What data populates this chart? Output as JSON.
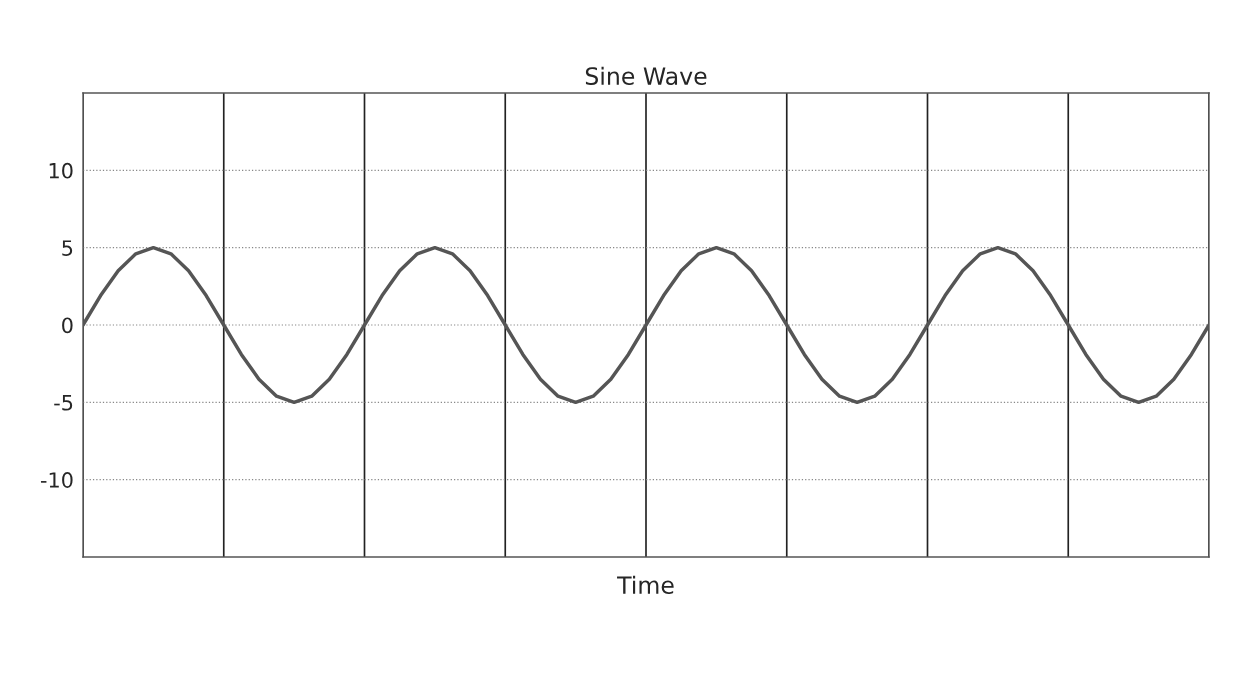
{
  "chart_data": {
    "type": "line",
    "title": "Sine Wave",
    "xlabel": "Time",
    "categories": [
      null,
      null,
      null,
      null,
      null,
      null,
      null,
      null,
      null,
      null,
      null,
      null,
      null,
      null,
      null,
      null,
      null,
      null,
      null,
      null,
      null,
      null,
      null,
      null,
      null,
      null,
      null,
      null,
      null,
      null,
      null,
      null,
      null,
      null,
      null,
      null,
      null,
      null,
      null,
      null,
      null,
      null,
      null,
      null,
      null,
      null,
      null,
      null,
      null,
      null,
      null,
      null,
      null,
      null,
      null,
      null,
      null,
      null,
      null,
      null,
      null,
      null,
      null,
      null,
      null
    ],
    "series": [
      {
        "color": "#555555",
        "values": [
          0,
          1.9,
          3.5,
          4.6,
          5,
          4.6,
          3.5,
          1.9,
          0,
          -1.9,
          -3.5,
          -4.6,
          -5,
          -4.6,
          -3.5,
          -1.9,
          0,
          1.9,
          3.5,
          4.6,
          5,
          4.6,
          3.5,
          1.9,
          0,
          -1.9,
          -3.5,
          -4.6,
          -5,
          -4.6,
          -3.5,
          -1.9,
          0,
          1.9,
          3.5,
          4.6,
          5,
          4.6,
          3.5,
          1.9,
          0,
          -1.9,
          -3.5,
          -4.6,
          -5,
          -4.6,
          -3.5,
          -1.9,
          0,
          1.9,
          3.5,
          4.6,
          5,
          4.6,
          3.5,
          1.9,
          0,
          -1.9,
          -3.5,
          -4.6,
          -5,
          -4.6,
          -3.5,
          -1.9,
          0
        ]
      }
    ],
    "ylim": [
      -15,
      15
    ],
    "yticks": [
      -10,
      -5,
      0,
      5,
      10
    ],
    "tick_labels": "y",
    "grid": true,
    "marker": "none",
    "line_style": "solid"
  }
}
